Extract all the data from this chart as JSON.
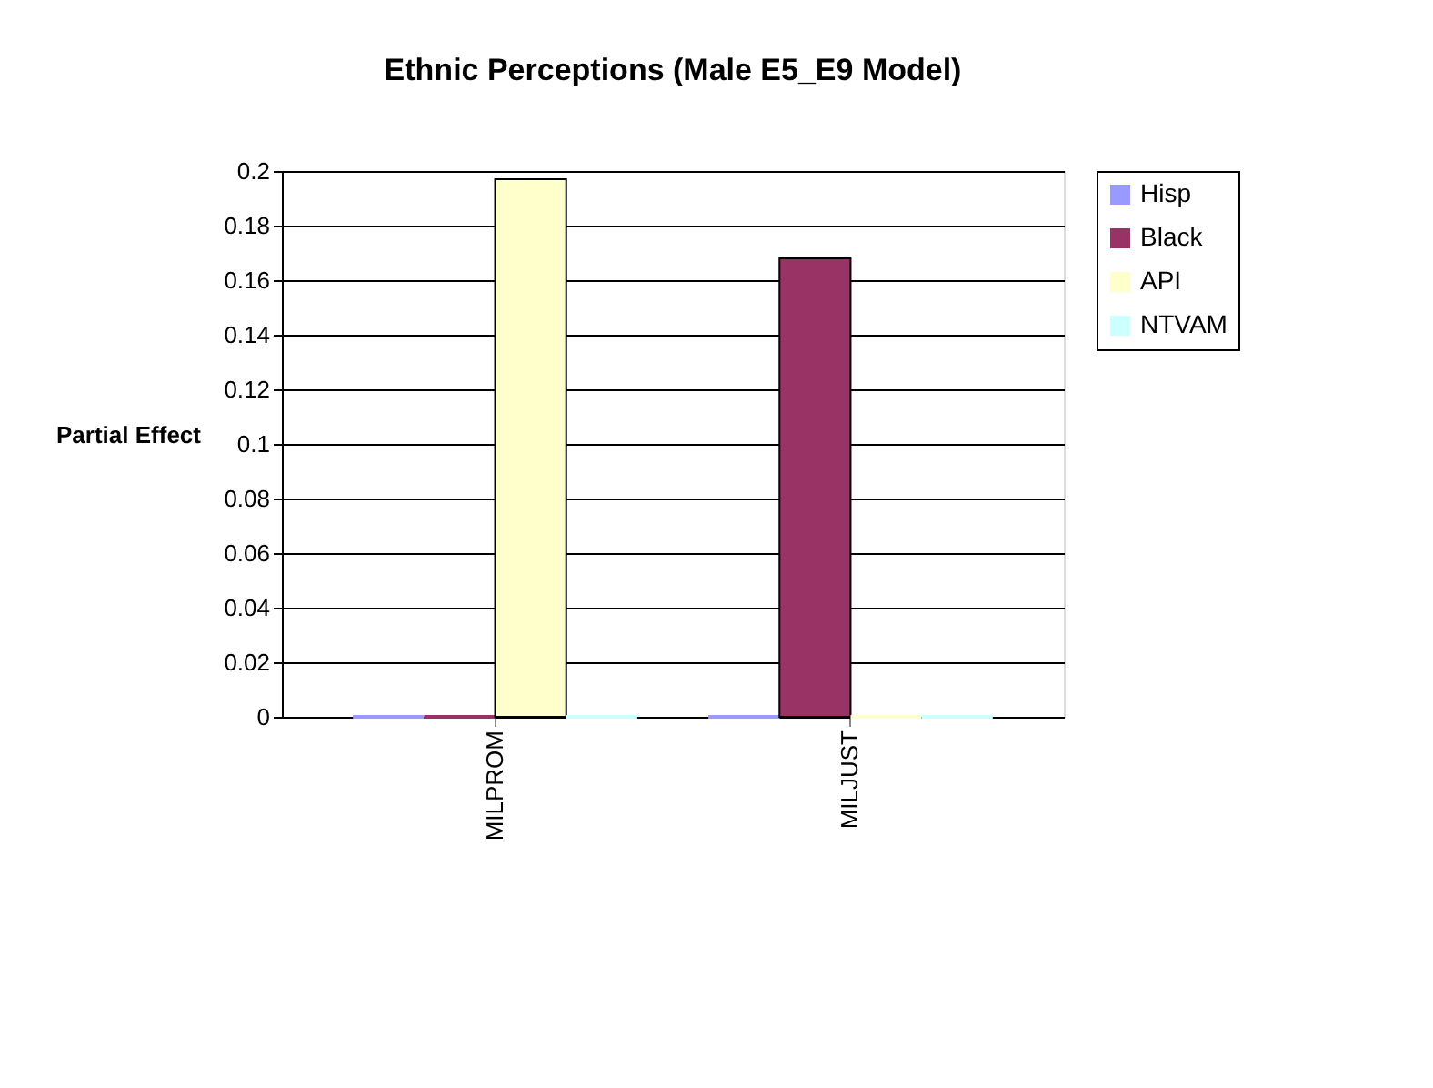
{
  "chart_data": {
    "type": "bar",
    "title": "Ethnic Perceptions (Male E5_E9 Model)",
    "ylabel": "Partial Effect",
    "categories": [
      "MILPROM",
      "MILJUST"
    ],
    "series": [
      {
        "name": "Hisp",
        "color": "#9999ff",
        "values": [
          0,
          0
        ]
      },
      {
        "name": "Black",
        "color": "#993366",
        "values": [
          0,
          0.168
        ]
      },
      {
        "name": "API",
        "color": "#ffffcc",
        "values": [
          0.197,
          0
        ]
      },
      {
        "name": "NTVAM",
        "color": "#ccffff",
        "values": [
          0,
          0
        ]
      }
    ],
    "ylim": [
      0,
      0.2
    ],
    "yticks": [
      0,
      0.02,
      0.04,
      0.06,
      0.08,
      0.1,
      0.12,
      0.14,
      0.16,
      0.18,
      0.2
    ],
    "grid": "y",
    "legend": "right"
  }
}
